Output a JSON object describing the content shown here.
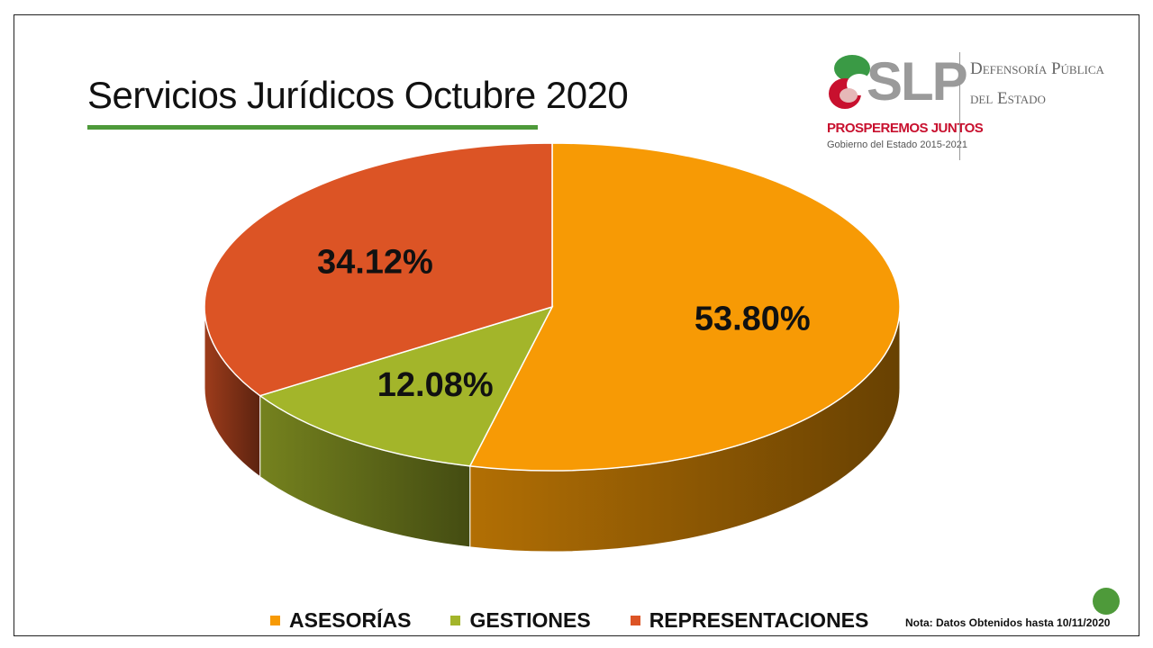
{
  "slide": {
    "title": "Servicios Jurídicos Octubre 2020",
    "note": "Nota: Datos Obtenidos hasta 10/11/2020"
  },
  "logo": {
    "mark": "SLP",
    "slogan": "PROSPEREMOS JUNTOS",
    "government": "Gobierno del Estado 2015-2021",
    "org_line1": "Defensoría Pública",
    "org_line2": "del Estado"
  },
  "chart_data": {
    "type": "pie",
    "style": "3d",
    "categories": [
      "ASESORÍAS",
      "GESTIONES",
      "REPRESENTACIONES"
    ],
    "values": [
      53.8,
      12.08,
      34.12
    ],
    "labels": [
      "53.80%",
      "12.08%",
      "34.12%"
    ],
    "colors": [
      "#f79a05",
      "#a3b52a",
      "#dc5425"
    ],
    "legend_position": "bottom"
  }
}
